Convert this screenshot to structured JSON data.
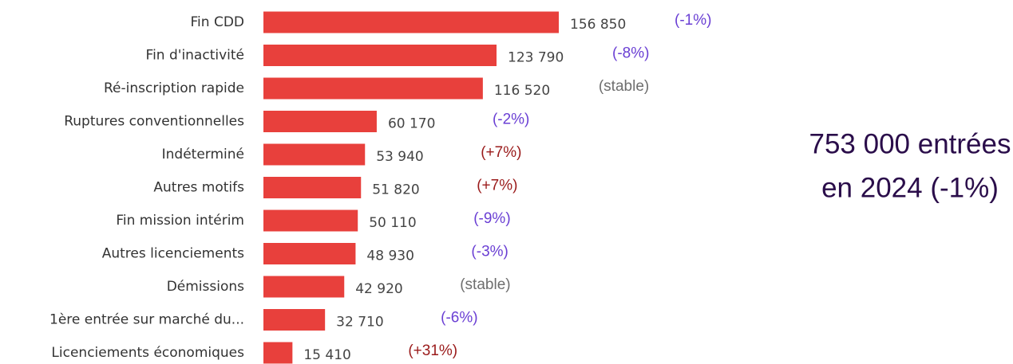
{
  "chart_data": {
    "type": "bar",
    "orientation": "horizontal",
    "color": "#e8403c",
    "categories": [
      "Fin CDD",
      "Fin d'inactivité",
      "Ré-inscription rapide",
      "Ruptures conventionnelles",
      "Indéterminé",
      "Autres motifs",
      "Fin mission intérim",
      "Autres licenciements",
      "Démissions",
      "1ère entrée sur marché du...",
      "Licenciements économiques"
    ],
    "values": [
      156850,
      123790,
      116520,
      60170,
      53940,
      51820,
      50110,
      48930,
      42920,
      32710,
      15410
    ],
    "value_labels": [
      "156 850",
      "123 790",
      "116 520",
      "60 170",
      "53 940",
      "51 820",
      "50 110",
      "48 930",
      "42 920",
      "32 710",
      "15 410"
    ],
    "changes": [
      {
        "label": "(-1%)",
        "color": "#6a3fd4"
      },
      {
        "label": "(-8%)",
        "color": "#6a3fd4"
      },
      {
        "label": "(stable)",
        "color": "#6e6e6e"
      },
      {
        "label": "(-2%)",
        "color": "#6a3fd4"
      },
      {
        "label": "(+7%)",
        "color": "#9a1a1a"
      },
      {
        "label": "(+7%)",
        "color": "#9a1a1a"
      },
      {
        "label": "(-9%)",
        "color": "#6a3fd4"
      },
      {
        "label": "(-3%)",
        "color": "#6a3fd4"
      },
      {
        "label": "(stable)",
        "color": "#6e6e6e"
      },
      {
        "label": "(-6%)",
        "color": "#6a3fd4"
      },
      {
        "label": "(+31%)",
        "color": "#9a1a1a"
      }
    ],
    "annotation": [
      "753 000 entrées",
      "en 2024 (-1%)"
    ]
  }
}
